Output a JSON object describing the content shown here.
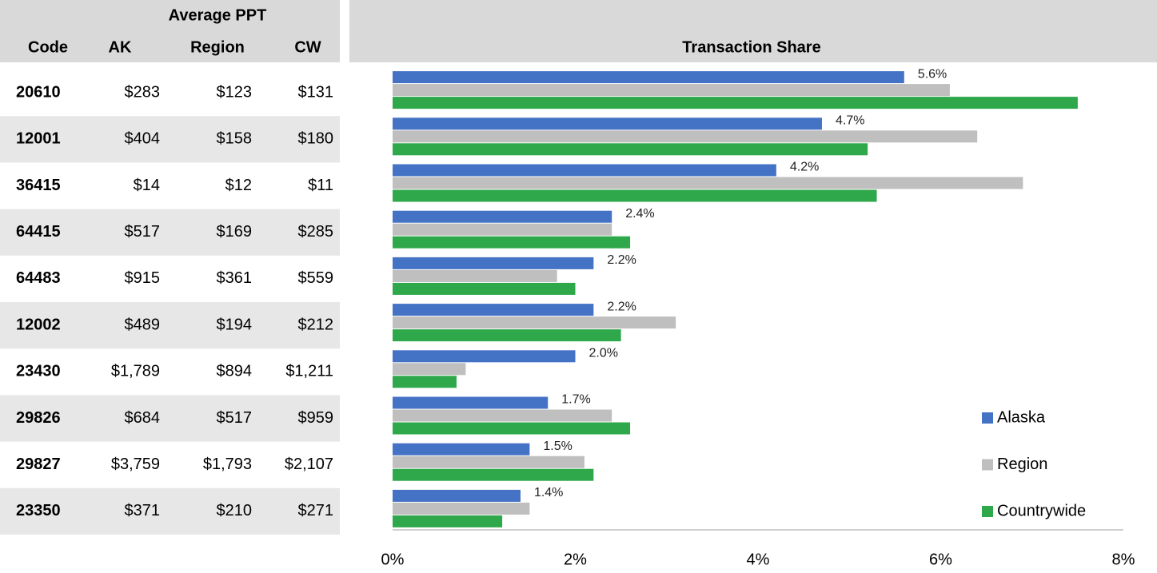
{
  "table": {
    "group_header": "Average PPT",
    "columns": [
      "Code",
      "AK",
      "Region",
      "CW"
    ],
    "rows": [
      [
        "20610",
        "$283",
        "$123",
        "$131"
      ],
      [
        "12001",
        "$404",
        "$158",
        "$180"
      ],
      [
        "36415",
        "$14",
        "$12",
        "$11"
      ],
      [
        "64415",
        "$517",
        "$169",
        "$285"
      ],
      [
        "64483",
        "$915",
        "$361",
        "$559"
      ],
      [
        "12002",
        "$489",
        "$194",
        "$212"
      ],
      [
        "23430",
        "$1,789",
        "$894",
        "$1,211"
      ],
      [
        "29826",
        "$684",
        "$517",
        "$959"
      ],
      [
        "29827",
        "$3,759",
        "$1,793",
        "$2,107"
      ],
      [
        "23350",
        "$371",
        "$210",
        "$271"
      ]
    ]
  },
  "chart_data": {
    "type": "barh",
    "title": "Transaction Share",
    "series": [
      {
        "name": "Alaska",
        "color": "#4472c4",
        "values": [
          5.6,
          4.7,
          4.2,
          2.4,
          2.2,
          2.2,
          2.0,
          1.7,
          1.5,
          1.4
        ],
        "value_labels": [
          "5.6%",
          "4.7%",
          "4.2%",
          "2.4%",
          "2.2%",
          "2.2%",
          "2.0%",
          "1.7%",
          "1.5%",
          "1.4%"
        ]
      },
      {
        "name": "Region",
        "color": "#bfbfbf",
        "values": [
          6.1,
          6.4,
          6.9,
          2.4,
          1.8,
          3.1,
          0.8,
          2.4,
          2.1,
          1.5
        ]
      },
      {
        "name": "Countrywide",
        "color": "#2ea84a",
        "values": [
          7.5,
          5.2,
          5.3,
          2.6,
          2.0,
          2.5,
          0.7,
          2.6,
          2.2,
          1.2
        ]
      }
    ],
    "xlim": [
      0,
      8
    ],
    "xticks": [
      {
        "value": 0,
        "label": "0%"
      },
      {
        "value": 2,
        "label": "2%"
      },
      {
        "value": 4,
        "label": "4%"
      },
      {
        "value": 6,
        "label": "6%"
      },
      {
        "value": 8,
        "label": "8%"
      }
    ],
    "legend": "lower right"
  }
}
